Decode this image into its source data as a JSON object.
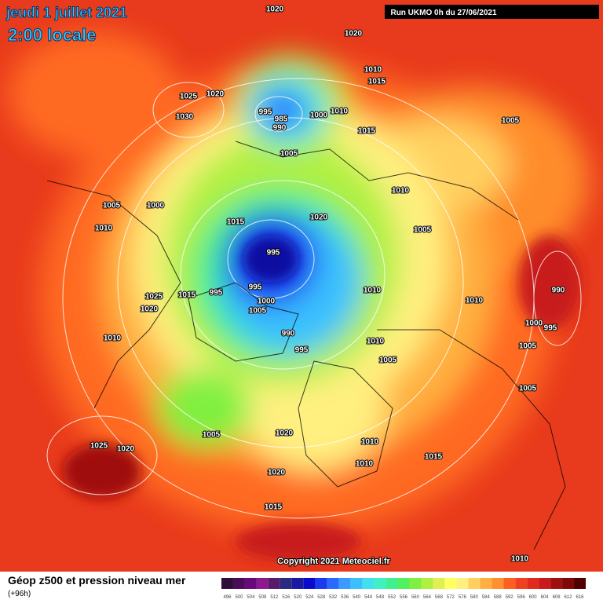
{
  "header": {
    "date": "jeudi 1 juillet 2021",
    "time": "2:00 locale",
    "run": "Run UKMO 0h du 27/06/2021"
  },
  "map": {
    "isobar_labels": [
      1020,
      1020,
      1010,
      1015,
      1025,
      1020,
      1030,
      995,
      985,
      990,
      1000,
      1010,
      1015,
      1005,
      1005,
      1010,
      1005,
      1000,
      1020,
      1010,
      1015,
      1005,
      995,
      995,
      1025,
      1015,
      995,
      1000,
      1010,
      990,
      1020,
      1005,
      1010,
      1000,
      995,
      990,
      1010,
      1010,
      995,
      1005,
      1005,
      1005,
      1005,
      1020,
      1010,
      1025,
      1020,
      1015,
      1010,
      1020,
      1015,
      1010
    ],
    "copyright": "Copyright 2021 Meteociel.fr"
  },
  "footer": {
    "title": "Géop z500 et pression niveau mer",
    "subtitle": "(+96h)",
    "scale": {
      "labels": [
        496,
        500,
        504,
        508,
        512,
        516,
        520,
        524,
        528,
        532,
        536,
        540,
        544,
        548,
        552,
        556,
        560,
        564,
        568,
        572,
        576,
        580,
        584,
        588,
        592,
        596,
        600,
        604,
        608,
        612,
        616
      ],
      "colors": [
        "#2e0f3a",
        "#4a0d5a",
        "#6a0a7a",
        "#8c1a8c",
        "#5a1a6a",
        "#2a2a80",
        "#1a1aa0",
        "#0a0acc",
        "#1a3aee",
        "#2a6aff",
        "#3a9aff",
        "#3ac0ff",
        "#40e0f0",
        "#40f0c0",
        "#40f090",
        "#50f060",
        "#80f040",
        "#b0f040",
        "#e0f050",
        "#ffff60",
        "#fff080",
        "#ffd060",
        "#ffb040",
        "#ff9030",
        "#ff6020",
        "#f04020",
        "#e02a1a",
        "#c81a1a",
        "#a01010",
        "#800808",
        "#500000"
      ]
    }
  }
}
